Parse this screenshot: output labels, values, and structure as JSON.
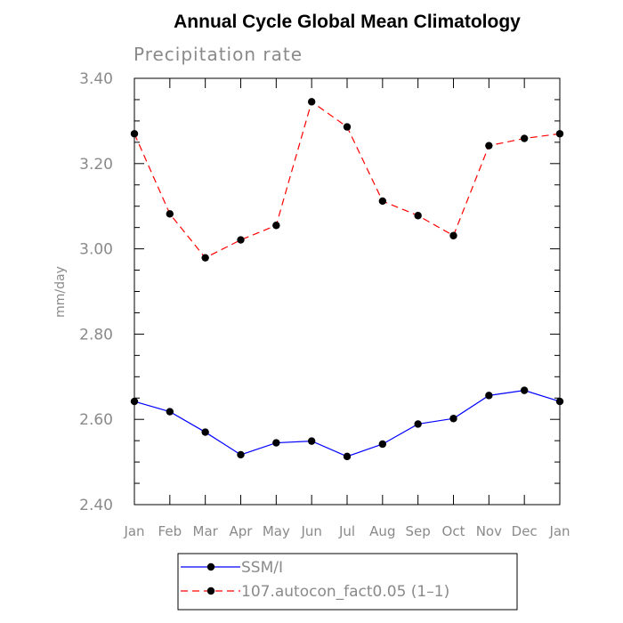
{
  "chart_data": {
    "type": "line",
    "title": "Annual Cycle Global Mean Climatology",
    "subtitle": "Precipitation rate",
    "xlabel": "",
    "ylabel": "mm/day",
    "categories": [
      "Jan",
      "Feb",
      "Mar",
      "Apr",
      "May",
      "Jun",
      "Jul",
      "Aug",
      "Sep",
      "Oct",
      "Nov",
      "Dec",
      "Jan"
    ],
    "ylim": [
      2.4,
      3.4
    ],
    "yticks": [
      "2.40",
      "2.60",
      "2.80",
      "3.00",
      "3.20",
      "3.40"
    ],
    "grid": false,
    "legend_placement": "bottom",
    "series": [
      {
        "name": "SSM/I",
        "color": "#0000ff",
        "dash": "solid",
        "values": [
          2.642,
          2.618,
          2.57,
          2.517,
          2.545,
          2.549,
          2.513,
          2.542,
          2.589,
          2.602,
          2.656,
          2.668,
          2.642
        ]
      },
      {
        "name": "107.autocon_fact0.05 (1–1)",
        "color": "#ff0000",
        "dash": "dashed",
        "values": [
          3.27,
          3.082,
          2.979,
          3.021,
          3.055,
          3.345,
          3.286,
          3.112,
          3.078,
          3.031,
          3.242,
          3.259,
          3.27
        ]
      }
    ]
  }
}
